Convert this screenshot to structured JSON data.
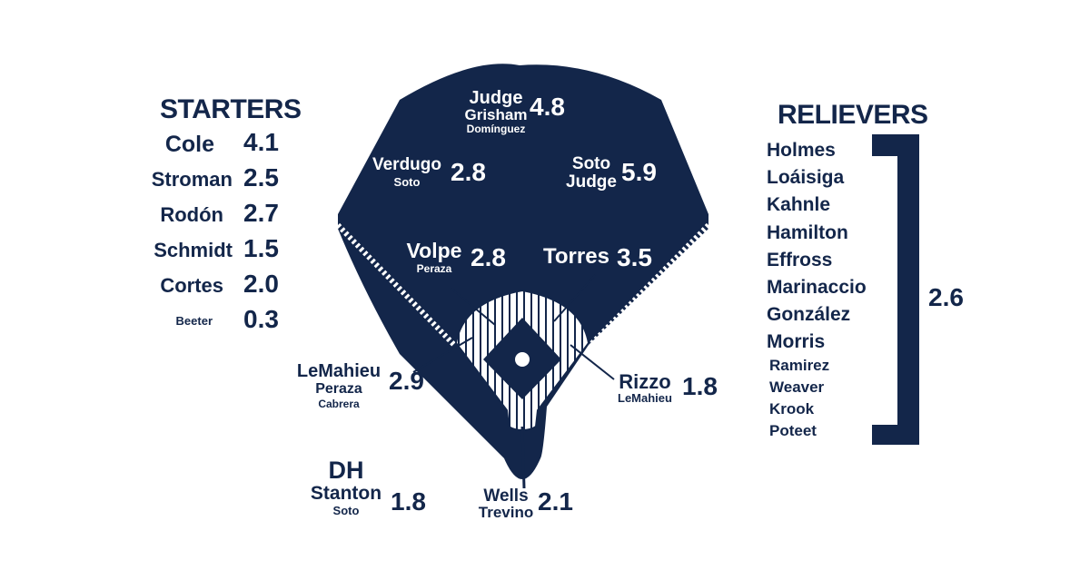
{
  "colors": {
    "navy": "#13264a",
    "white": "#ffffff"
  },
  "starters": {
    "title": "STARTERS",
    "players": [
      {
        "name": "Cole",
        "war": "4.1"
      },
      {
        "name": "Stroman",
        "war": "2.5"
      },
      {
        "name": "Rodón",
        "war": "2.7"
      },
      {
        "name": "Schmidt",
        "war": "1.5"
      },
      {
        "name": "Cortes",
        "war": "2.0"
      },
      {
        "name": "Beeter",
        "war": "0.3"
      }
    ]
  },
  "relievers": {
    "title": "RELIEVERS",
    "players": [
      "Holmes",
      "Loáisiga",
      "Kahnle",
      "Hamilton",
      "Effross",
      "Marinaccio",
      "González",
      "Morris",
      "Ramirez",
      "Weaver",
      "Krook",
      "Poteet"
    ],
    "war": "2.6"
  },
  "field": {
    "cf": {
      "primary": "Judge",
      "backup1": "Grisham",
      "backup2": "Domínguez",
      "war": "4.8"
    },
    "lf": {
      "primary": "Verdugo",
      "backup1": "Soto",
      "war": "2.8"
    },
    "rf": {
      "primary": "Soto",
      "backup1": "Judge",
      "war": "5.9"
    },
    "ss": {
      "primary": "Volpe",
      "backup1": "Peraza",
      "war": "2.8"
    },
    "second_base": {
      "primary": "Torres",
      "war": "3.5"
    },
    "third_base": {
      "primary": "LeMahieu",
      "backup1": "Peraza",
      "backup2": "Cabrera",
      "war": "2.9"
    },
    "first_base": {
      "primary": "Rizzo",
      "backup1": "LeMahieu",
      "war": "1.8"
    },
    "catcher": {
      "primary": "Wells",
      "backup1": "Trevino",
      "war": "2.1"
    },
    "dh": {
      "title": "DH",
      "primary": "Stanton",
      "backup1": "Soto",
      "war": "1.8"
    }
  }
}
